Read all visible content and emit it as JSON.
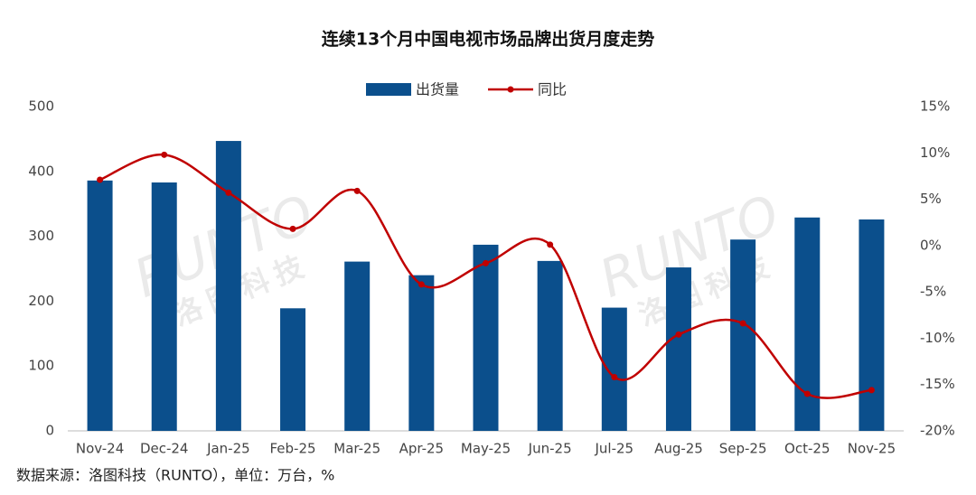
{
  "chart_data": {
    "type": "bar_line",
    "title": "连续13个月中国电视市场品牌出货月度走势",
    "source": "数据来源：洛图科技（RUNTO），单位：万台，%",
    "watermark": [
      "RUNTO",
      "洛图科技"
    ],
    "categories": [
      "Nov-24",
      "Dec-24",
      "Jan-25",
      "Feb-25",
      "Mar-25",
      "Apr-25",
      "May-25",
      "Jun-25",
      "Jul-25",
      "Aug-25",
      "Sep-25",
      "Oct-25",
      "Nov-25"
    ],
    "series": [
      {
        "name": "出货量",
        "type": "bar",
        "color": "#0b4f8c",
        "values": [
          386,
          383,
          447,
          189,
          261,
          240,
          287,
          262,
          190,
          252,
          295,
          329,
          326
        ]
      },
      {
        "name": "同比",
        "type": "line",
        "axis": "y2",
        "color": "#c00000",
        "values": [
          7.1,
          9.8,
          5.7,
          1.8,
          5.9,
          -4.2,
          -1.9,
          0.1,
          -14.2,
          -9.6,
          -8.4,
          -16.0,
          -15.6
        ]
      }
    ],
    "ylim": [
      0,
      500
    ],
    "yticks": [
      0,
      100,
      200,
      300,
      400,
      500
    ],
    "y2lim": [
      -20,
      15
    ],
    "y2ticks": [
      {
        "value": -20,
        "label": "-20%"
      },
      {
        "value": -15,
        "label": "-15%"
      },
      {
        "value": -10,
        "label": "-10%"
      },
      {
        "value": -5,
        "label": "-5%"
      },
      {
        "value": 0,
        "label": "0%"
      },
      {
        "value": 5,
        "label": "5%"
      },
      {
        "value": 10,
        "label": "10%"
      },
      {
        "value": 15,
        "label": "15%"
      }
    ],
    "legend": "top"
  }
}
